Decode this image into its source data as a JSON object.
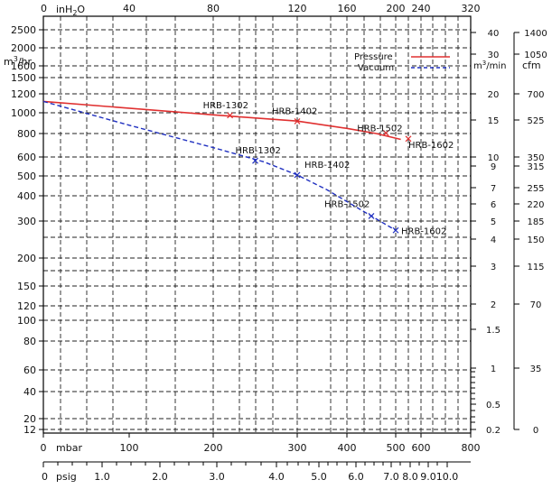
{
  "chart_data": {
    "type": "line",
    "title": "",
    "x_axes": {
      "top": {
        "unit": "inH2O",
        "unit_main": "inH",
        "unit_sub": "2",
        "unit_tail": "O",
        "ticks": [
          "0",
          "40",
          "80",
          "120",
          "160",
          "200",
          "240",
          "320"
        ]
      },
      "bottom_mbar": {
        "unit": "mbar",
        "ticks": [
          "0",
          "100",
          "200",
          "300",
          "400",
          "500",
          "600",
          "800"
        ]
      },
      "bottom_psig": {
        "unit": "psig",
        "ticks": [
          "0",
          "1.0",
          "2.0",
          "3.0",
          "4.0",
          "5.0",
          "6.0",
          "7.0",
          "8.0",
          "9.0",
          "10.0"
        ]
      }
    },
    "y_axes": {
      "left": {
        "unit": "m3/hr",
        "unit_main": "m",
        "unit_sup": "3",
        "unit_tail": "/hr",
        "ticks": [
          "2500",
          "2000",
          "1600",
          "1500",
          "1200",
          "1000",
          "800",
          "600",
          "500",
          "400",
          "300",
          "200",
          "150",
          "120",
          "100",
          "80",
          "60",
          "40",
          "20",
          "12"
        ]
      },
      "right_m3min": {
        "unit": "m3/min",
        "unit_main": "m",
        "unit_sup": "3",
        "unit_tail": "/min",
        "ticks": [
          "40",
          "30",
          "20",
          "15",
          "10",
          "9",
          "7",
          "6",
          "5",
          "4",
          "3",
          "2",
          "1.5",
          "1",
          "0.5",
          "0.2"
        ]
      },
      "right_cfm": {
        "unit": "cfm",
        "ticks": [
          "1400",
          "1050",
          "700",
          "525",
          "350",
          "315",
          "255",
          "220",
          "185",
          "150",
          "115",
          "70",
          "35",
          "0"
        ]
      }
    },
    "legend": {
      "position": "top-right",
      "entries": [
        {
          "label": "Pressure",
          "color": "#e03030",
          "style": "solid"
        },
        {
          "label": "Vacuum",
          "color": "#2030c0",
          "style": "dashed"
        }
      ]
    },
    "series": [
      {
        "name": "Pressure",
        "color": "#e03030",
        "style": "solid",
        "points": [
          {
            "mbar": 0,
            "m3hr": 1120
          },
          {
            "mbar": 200,
            "m3hr": 980
          },
          {
            "mbar": 300,
            "m3hr": 920
          },
          {
            "mbar": 400,
            "m3hr": 850
          },
          {
            "mbar": 460,
            "m3hr": 800
          },
          {
            "mbar": 520,
            "m3hr": 750
          }
        ],
        "markers": [
          {
            "label": "HRB-1302",
            "mbar": 220,
            "m3hr": 975
          },
          {
            "label": "HRB-1402",
            "mbar": 300,
            "m3hr": 918
          },
          {
            "label": "HRB-1502",
            "mbar": 480,
            "m3hr": 805
          },
          {
            "label": "HRB-1602",
            "mbar": 550,
            "m3hr": 755
          }
        ]
      },
      {
        "name": "Vacuum",
        "color": "#2030c0",
        "style": "dashed",
        "points": [
          {
            "mbar": 0,
            "m3hr": 1120
          },
          {
            "mbar": 100,
            "m3hr": 880
          },
          {
            "mbar": 200,
            "m3hr": 680
          },
          {
            "mbar": 260,
            "m3hr": 575
          },
          {
            "mbar": 300,
            "m3hr": 505
          },
          {
            "mbar": 360,
            "m3hr": 430
          },
          {
            "mbar": 450,
            "m3hr": 320
          },
          {
            "mbar": 500,
            "m3hr": 275
          }
        ],
        "markers": [
          {
            "label": "HRB-1302",
            "mbar": 250,
            "m3hr": 580
          },
          {
            "label": "HRB-1402",
            "mbar": 300,
            "m3hr": 505
          },
          {
            "label": "HRB-1502",
            "mbar": 450,
            "m3hr": 320
          },
          {
            "label": "HRB-1602",
            "mbar": 500,
            "m3hr": 275
          }
        ]
      }
    ],
    "grid": true
  }
}
